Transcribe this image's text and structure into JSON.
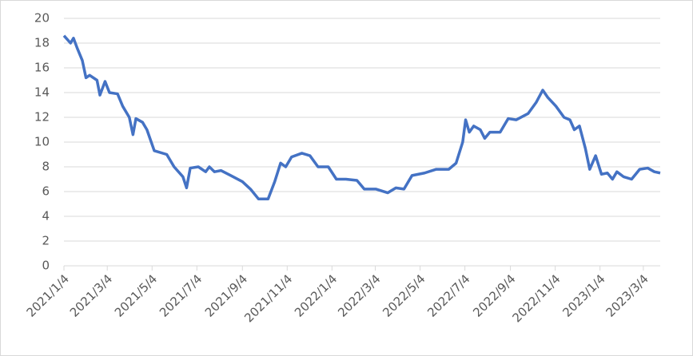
{
  "chart_data": {
    "type": "line",
    "x": [
      "2021/1/4",
      "2021/1/13",
      "2021/1/17",
      "2021/1/22",
      "2021/1/29",
      "2021/2/3",
      "2021/2/8",
      "2021/2/18",
      "2021/2/22",
      "2021/3/1",
      "2021/3/7",
      "2021/3/18",
      "2021/3/25",
      "2021/4/3",
      "2021/4/8",
      "2021/4/12",
      "2021/4/21",
      "2021/4/27",
      "2021/5/7",
      "2021/5/24",
      "2021/6/3",
      "2021/6/15",
      "2021/6/20",
      "2021/6/25",
      "2021/7/6",
      "2021/7/16",
      "2021/7/21",
      "2021/7/28",
      "2021/8/6",
      "2021/8/19",
      "2021/9/4",
      "2021/9/15",
      "2021/9/26",
      "2021/10/9",
      "2021/10/18",
      "2021/10/26",
      "2021/11/2",
      "2021/11/10",
      "2021/11/24",
      "2021/12/5",
      "2021/12/16",
      "2021/12/30",
      "2022/1/10",
      "2022/1/23",
      "2022/2/7",
      "2022/2/17",
      "2022/3/5",
      "2022/3/21",
      "2022/4/1",
      "2022/4/12",
      "2022/4/23",
      "2022/5/10",
      "2022/5/26",
      "2022/6/12",
      "2022/6/22",
      "2022/7/1",
      "2022/7/5",
      "2022/7/10",
      "2022/7/16",
      "2022/7/25",
      "2022/7/31",
      "2022/8/7",
      "2022/8/21",
      "2022/9/1",
      "2022/9/12",
      "2022/9/28",
      "2022/10/9",
      "2022/10/18",
      "2022/10/25",
      "2022/11/5",
      "2022/11/16",
      "2022/11/24",
      "2022/11/30",
      "2022/12/7",
      "2022/12/15",
      "2022/12/21",
      "2022/12/29",
      "2023/1/6",
      "2023/1/14",
      "2023/1/21",
      "2023/1/27",
      "2023/2/5",
      "2023/2/16",
      "2023/2/27",
      "2023/3/10",
      "2023/3/19",
      "2023/3/27"
    ],
    "series": [
      {
        "color": "#4472c4",
        "values": [
          18.6,
          18.0,
          18.4,
          17.6,
          16.6,
          15.2,
          15.4,
          15.0,
          13.8,
          14.9,
          14.0,
          13.9,
          12.9,
          12.0,
          10.6,
          11.9,
          11.6,
          11.0,
          9.3,
          9.0,
          8.0,
          7.2,
          6.3,
          7.9,
          8.0,
          7.6,
          8.0,
          7.6,
          7.7,
          7.3,
          6.8,
          6.2,
          5.4,
          5.4,
          6.8,
          8.3,
          8.0,
          8.8,
          9.1,
          8.9,
          8.0,
          8.0,
          7.0,
          7.0,
          6.9,
          6.2,
          6.2,
          5.9,
          6.3,
          6.2,
          7.3,
          7.5,
          7.8,
          7.8,
          8.3,
          10.0,
          11.8,
          10.8,
          11.3,
          11.0,
          10.3,
          10.8,
          10.8,
          11.9,
          11.8,
          12.3,
          13.2,
          14.2,
          13.6,
          12.9,
          12.0,
          11.8,
          11.0,
          11.3,
          9.5,
          7.8,
          8.9,
          7.4,
          7.5,
          7.0,
          7.6,
          7.2,
          7.0,
          7.8,
          7.9,
          7.6,
          7.5
        ]
      }
    ],
    "xlim": [
      "2021/1/4",
      "2023/3/27"
    ],
    "xticks": [
      "2021/1/4",
      "2021/3/4",
      "2021/5/4",
      "2021/7/4",
      "2021/9/4",
      "2021/11/4",
      "2022/1/4",
      "2022/3/4",
      "2022/5/4",
      "2022/7/4",
      "2022/9/4",
      "2022/11/4",
      "2023/1/4",
      "2023/3/4"
    ],
    "ylim": [
      0,
      20
    ],
    "yticks": [
      0,
      2,
      4,
      6,
      8,
      10,
      12,
      14,
      16,
      18,
      20
    ],
    "grid": true
  }
}
